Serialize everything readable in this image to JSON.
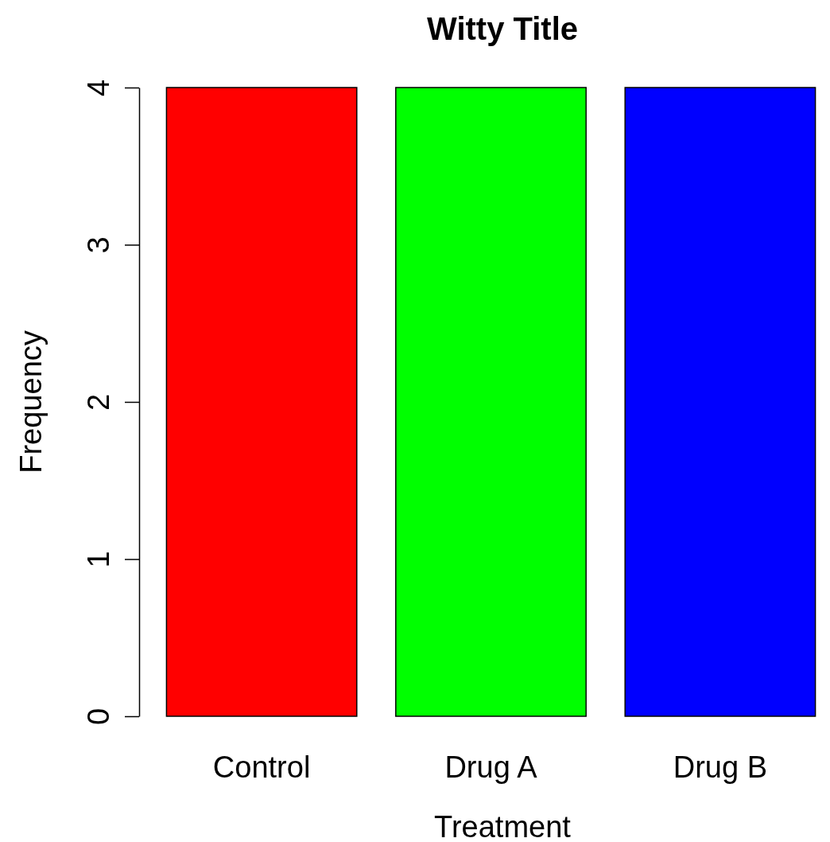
{
  "chart_data": {
    "type": "bar",
    "title": "Witty Title",
    "xlabel": "Treatment",
    "ylabel": "Frequency",
    "categories": [
      "Control",
      "Drug A",
      "Drug B"
    ],
    "values": [
      4,
      4,
      4
    ],
    "colors": [
      "#ff0000",
      "#00ff00",
      "#0000ff"
    ],
    "ylim": [
      0,
      4
    ],
    "yticks": [
      0,
      1,
      2,
      3,
      4
    ]
  }
}
